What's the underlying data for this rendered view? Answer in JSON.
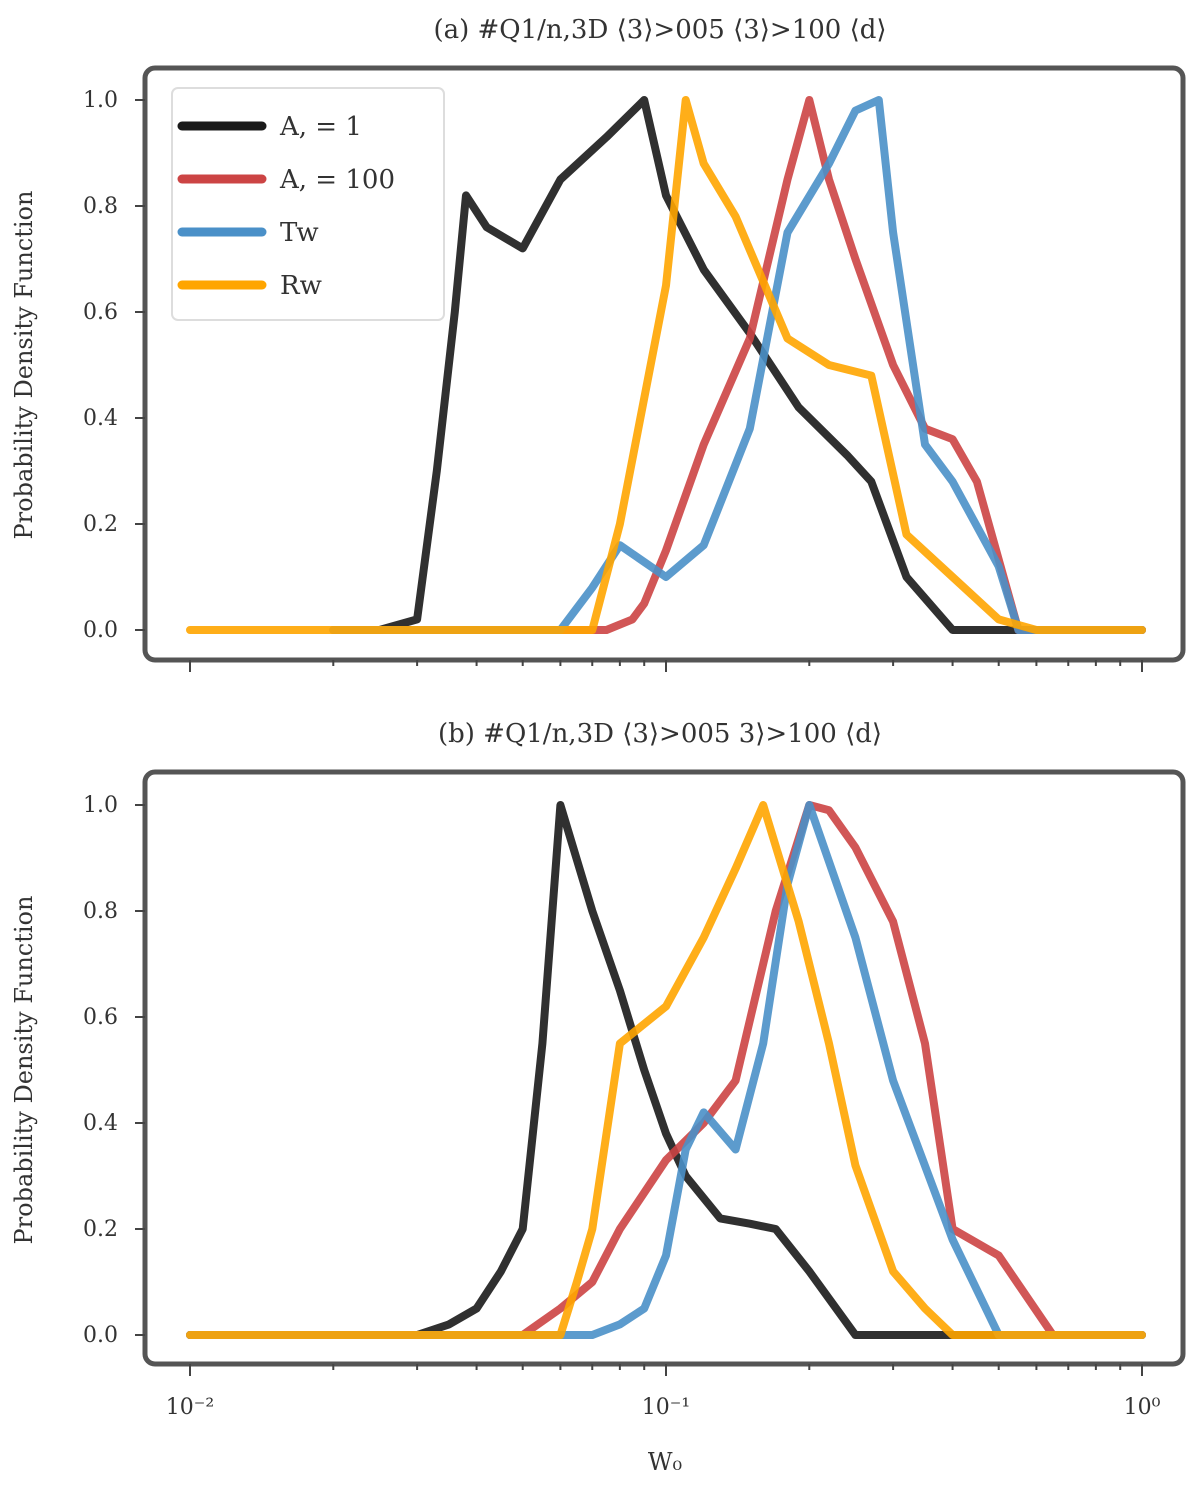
{
  "chart_data": [
    {
      "type": "line",
      "title": "(a) #Q1/n,3D ⟨3⟩>005 ⟨3⟩>100 ⟨d⟩",
      "xlabel": "",
      "ylabel": "Probability Density Function",
      "xscale": "log",
      "xlim": [
        0.01,
        1
      ],
      "ylim": [
        0,
        1.0
      ],
      "yticks": [
        "0.0",
        "0.2",
        "0.4",
        "0.6",
        "0.8",
        "1.0"
      ],
      "xticks": [],
      "legend": "top-left",
      "series": [
        {
          "name": "A, = 1",
          "color": "#1a1a1a",
          "x": [
            0.02,
            0.025,
            0.03,
            0.033,
            0.036,
            0.038,
            0.042,
            0.05,
            0.06,
            0.075,
            0.09,
            0.1,
            0.12,
            0.15,
            0.19,
            0.24,
            0.27,
            0.32,
            0.4,
            0.5,
            0.7,
            1.0
          ],
          "y": [
            0.0,
            0.0,
            0.02,
            0.3,
            0.6,
            0.82,
            0.76,
            0.72,
            0.85,
            0.93,
            1.0,
            0.82,
            0.68,
            0.56,
            0.42,
            0.33,
            0.28,
            0.1,
            0.0,
            0.0,
            0.0,
            0.0
          ]
        },
        {
          "name": "A, = 100",
          "color": "#cc4444",
          "x": [
            0.02,
            0.065,
            0.075,
            0.085,
            0.09,
            0.1,
            0.12,
            0.15,
            0.18,
            0.2,
            0.22,
            0.25,
            0.3,
            0.35,
            0.4,
            0.45,
            0.55,
            0.65,
            1.0
          ],
          "y": [
            0.0,
            0.0,
            0.0,
            0.02,
            0.05,
            0.15,
            0.35,
            0.55,
            0.85,
            1.0,
            0.85,
            0.7,
            0.5,
            0.38,
            0.36,
            0.28,
            0.0,
            0.0,
            0.0
          ]
        },
        {
          "name": "Tw",
          "color": "#4a90c8",
          "x": [
            0.02,
            0.05,
            0.06,
            0.07,
            0.08,
            0.1,
            0.12,
            0.15,
            0.18,
            0.22,
            0.25,
            0.28,
            0.3,
            0.35,
            0.4,
            0.5,
            0.55,
            1.0
          ],
          "y": [
            0.0,
            0.0,
            0.0,
            0.08,
            0.16,
            0.1,
            0.16,
            0.38,
            0.75,
            0.88,
            0.98,
            1.0,
            0.75,
            0.35,
            0.28,
            0.12,
            0.0,
            0.0
          ]
        },
        {
          "name": "Rw",
          "color": "#ffa500",
          "x": [
            0.01,
            0.06,
            0.07,
            0.08,
            0.1,
            0.11,
            0.12,
            0.14,
            0.18,
            0.22,
            0.27,
            0.32,
            0.4,
            0.5,
            0.6,
            1.0
          ],
          "y": [
            0.0,
            0.0,
            0.0,
            0.2,
            0.65,
            1.0,
            0.88,
            0.78,
            0.55,
            0.5,
            0.48,
            0.18,
            0.1,
            0.02,
            0.0,
            0.0
          ]
        }
      ]
    },
    {
      "type": "line",
      "title": "(b) #Q1/n,3D ⟨3⟩>005 3⟩>100 ⟨d⟩",
      "xlabel": "W₀",
      "ylabel": "Probability Density Function",
      "xscale": "log",
      "xlim": [
        0.01,
        1
      ],
      "ylim": [
        0,
        1.0
      ],
      "yticks": [
        "0.0",
        "0.2",
        "0.4",
        "0.6",
        "0.8",
        "1.0"
      ],
      "xticks": [
        "10⁻²",
        "10⁻¹",
        "10⁰"
      ],
      "legend": "none",
      "series": [
        {
          "name": "A, = 1",
          "color": "#1a1a1a",
          "x": [
            0.01,
            0.03,
            0.035,
            0.04,
            0.045,
            0.05,
            0.055,
            0.06,
            0.07,
            0.08,
            0.09,
            0.1,
            0.11,
            0.13,
            0.15,
            0.17,
            0.2,
            0.25,
            0.3,
            1.0
          ],
          "y": [
            0.0,
            0.0,
            0.02,
            0.05,
            0.12,
            0.2,
            0.55,
            1.0,
            0.8,
            0.65,
            0.5,
            0.38,
            0.3,
            0.22,
            0.21,
            0.2,
            0.12,
            0.0,
            0.0,
            0.0
          ]
        },
        {
          "name": "A, = 100",
          "color": "#cc4444",
          "x": [
            0.01,
            0.05,
            0.06,
            0.07,
            0.08,
            0.1,
            0.12,
            0.14,
            0.17,
            0.2,
            0.22,
            0.25,
            0.3,
            0.35,
            0.4,
            0.5,
            0.65,
            1.0
          ],
          "y": [
            0.0,
            0.0,
            0.05,
            0.1,
            0.2,
            0.33,
            0.4,
            0.48,
            0.8,
            1.0,
            0.99,
            0.92,
            0.78,
            0.55,
            0.2,
            0.15,
            0.0,
            0.0
          ]
        },
        {
          "name": "Tw",
          "color": "#4a90c8",
          "x": [
            0.01,
            0.07,
            0.08,
            0.09,
            0.1,
            0.11,
            0.12,
            0.14,
            0.16,
            0.18,
            0.2,
            0.25,
            0.3,
            0.4,
            0.5,
            1.0
          ],
          "y": [
            0.0,
            0.0,
            0.02,
            0.05,
            0.15,
            0.35,
            0.42,
            0.35,
            0.55,
            0.85,
            1.0,
            0.75,
            0.48,
            0.18,
            0.0,
            0.0
          ]
        },
        {
          "name": "Rw",
          "color": "#ffa500",
          "x": [
            0.01,
            0.06,
            0.065,
            0.07,
            0.08,
            0.1,
            0.12,
            0.14,
            0.16,
            0.19,
            0.22,
            0.25,
            0.3,
            0.35,
            0.4,
            1.0
          ],
          "y": [
            0.0,
            0.0,
            0.1,
            0.2,
            0.55,
            0.62,
            0.75,
            0.88,
            1.0,
            0.78,
            0.55,
            0.32,
            0.12,
            0.05,
            0.0,
            0.0
          ]
        }
      ]
    }
  ]
}
